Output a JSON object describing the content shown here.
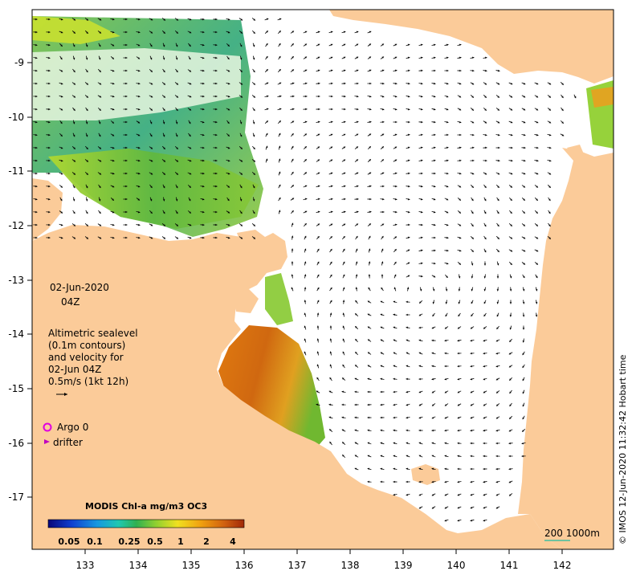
{
  "map": {
    "date_label": "02-Jun-2020",
    "time_label": "04Z",
    "altimetry": {
      "line1": "Altimetric sealevel",
      "line2": "(0.1m contours)",
      "line3": "and velocity for",
      "line4": "02-Jun 04Z",
      "line5": "0.5m/s (1kt 12h)"
    },
    "argo_label": "Argo 0",
    "drifter_label": "drifter",
    "colorbar_title": "MODIS Chl-a mg/m3 OC3",
    "colorbar_ticks": [
      "0.05",
      "0.1",
      "0.25",
      "0.5",
      "1",
      "2",
      "4"
    ],
    "scale_label": "200  1000m",
    "copyright": "© IMOS 12-Jun-2020 11:32:42 Hobart time",
    "lon_ticks": [
      "133",
      "134",
      "135",
      "136",
      "137",
      "138",
      "139",
      "140",
      "141",
      "142"
    ],
    "lat_ticks": [
      "-9",
      "-10",
      "-11",
      "-12",
      "-13",
      "-14",
      "-15",
      "-16",
      "-17"
    ],
    "colors": {
      "land": "#FBCB99",
      "sea": "#FFFFFF",
      "argo": "#E000E0",
      "drifter": "#C000C0",
      "scale_bar": "#40C0A0"
    },
    "colorbar_colors": [
      "#08067A",
      "#1040D0",
      "#1898E0",
      "#20C8B0",
      "#30B050",
      "#90D030",
      "#F0E020",
      "#F0A010",
      "#D06010",
      "#A02808"
    ]
  }
}
